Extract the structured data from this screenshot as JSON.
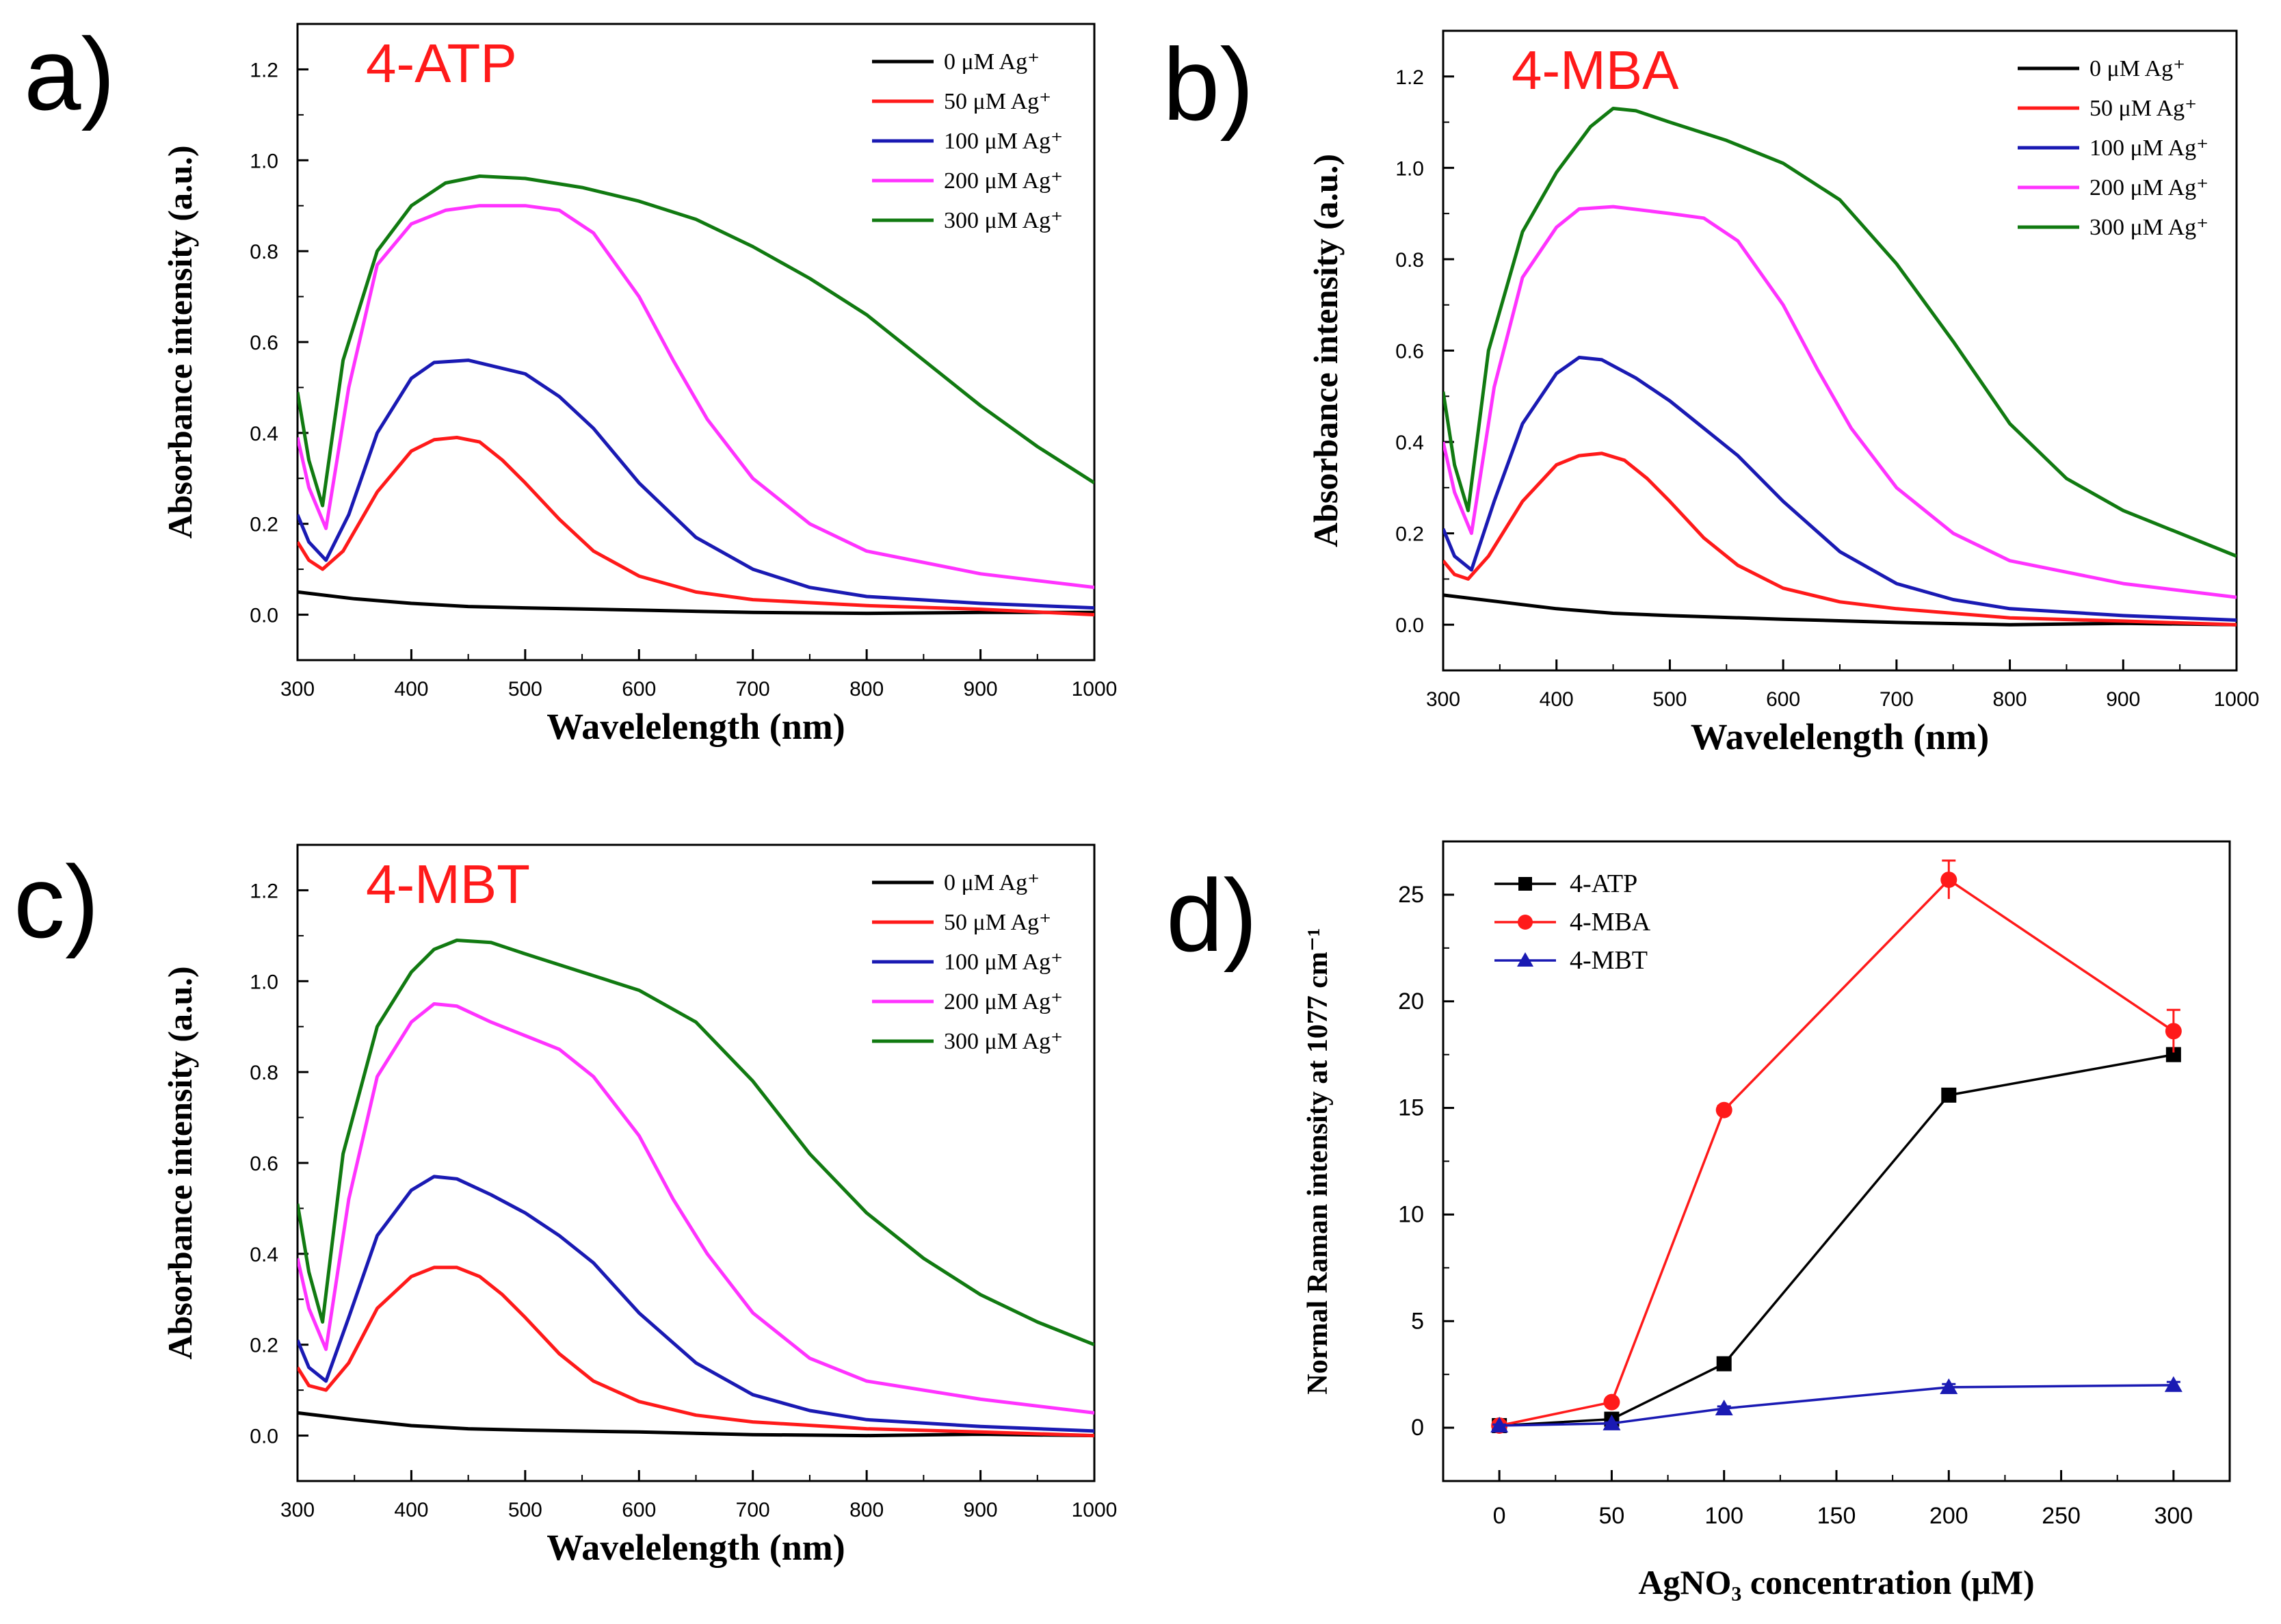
{
  "figure": {
    "panel_labels": [
      "a)",
      "b)",
      "c)",
      "d)"
    ],
    "colors": {
      "black": "#000000",
      "red": "#ff1a1a",
      "blue": "#1a1ab3",
      "magenta": "#ff33ff",
      "green": "#117a11",
      "title_red": "#ff1a1a"
    }
  },
  "chart_data": [
    {
      "panel": "a)",
      "type": "line",
      "title": "4-ATP",
      "xlabel": "Wavelelength (nm)",
      "ylabel": "Absorbance intensity (a.u.)",
      "xlim": [
        300,
        1000
      ],
      "ylim": [
        -0.1,
        1.3
      ],
      "xticks": [
        300,
        400,
        500,
        600,
        700,
        800,
        900,
        1000
      ],
      "yticks": [
        0.0,
        0.2,
        0.4,
        0.6,
        0.8,
        1.0,
        1.2
      ],
      "legend": "top-right",
      "series": [
        {
          "name": "0 μM Ag⁺",
          "color": "black",
          "x": [
            300,
            350,
            400,
            450,
            500,
            600,
            700,
            800,
            900,
            1000
          ],
          "y": [
            0.05,
            0.035,
            0.025,
            0.018,
            0.015,
            0.01,
            0.005,
            0.003,
            0.005,
            0.005
          ]
        },
        {
          "name": "50 μM Ag⁺",
          "color": "red",
          "x": [
            300,
            310,
            322,
            340,
            370,
            400,
            420,
            440,
            460,
            480,
            500,
            530,
            560,
            600,
            650,
            700,
            800,
            900,
            1000
          ],
          "y": [
            0.16,
            0.12,
            0.1,
            0.14,
            0.27,
            0.36,
            0.385,
            0.39,
            0.38,
            0.34,
            0.29,
            0.21,
            0.14,
            0.085,
            0.05,
            0.033,
            0.02,
            0.012,
            0.0
          ]
        },
        {
          "name": "100 μM Ag⁺",
          "color": "blue",
          "x": [
            300,
            310,
            325,
            345,
            370,
            400,
            420,
            450,
            500,
            530,
            560,
            600,
            650,
            700,
            750,
            800,
            900,
            1000
          ],
          "y": [
            0.22,
            0.16,
            0.12,
            0.22,
            0.4,
            0.52,
            0.555,
            0.56,
            0.53,
            0.48,
            0.41,
            0.29,
            0.17,
            0.1,
            0.06,
            0.04,
            0.025,
            0.015
          ]
        },
        {
          "name": "200 μM Ag⁺",
          "color": "magenta",
          "x": [
            300,
            310,
            325,
            345,
            370,
            400,
            430,
            460,
            500,
            530,
            560,
            600,
            630,
            660,
            700,
            750,
            800,
            900,
            1000
          ],
          "y": [
            0.39,
            0.28,
            0.19,
            0.5,
            0.77,
            0.86,
            0.89,
            0.9,
            0.9,
            0.89,
            0.84,
            0.7,
            0.56,
            0.43,
            0.3,
            0.2,
            0.14,
            0.09,
            0.06
          ]
        },
        {
          "name": "300 μM Ag⁺",
          "color": "green",
          "x": [
            300,
            310,
            322,
            340,
            370,
            400,
            430,
            460,
            500,
            550,
            600,
            650,
            700,
            750,
            800,
            850,
            900,
            950,
            1000
          ],
          "y": [
            0.49,
            0.34,
            0.24,
            0.56,
            0.8,
            0.9,
            0.95,
            0.965,
            0.96,
            0.94,
            0.91,
            0.87,
            0.81,
            0.74,
            0.66,
            0.56,
            0.46,
            0.37,
            0.29
          ]
        }
      ]
    },
    {
      "panel": "b)",
      "type": "line",
      "title": "4-MBA",
      "xlabel": "Wavelelength (nm)",
      "ylabel": "Absorbance intensity (a.u.)",
      "xlim": [
        300,
        1000
      ],
      "ylim": [
        -0.1,
        1.3
      ],
      "xticks": [
        300,
        400,
        500,
        600,
        700,
        800,
        900,
        1000
      ],
      "yticks": [
        0.0,
        0.2,
        0.4,
        0.6,
        0.8,
        1.0,
        1.2
      ],
      "legend": "top-right",
      "series": [
        {
          "name": "0 μM Ag⁺",
          "color": "black",
          "x": [
            300,
            350,
            400,
            450,
            500,
            600,
            700,
            800,
            900,
            1000
          ],
          "y": [
            0.065,
            0.05,
            0.035,
            0.025,
            0.02,
            0.012,
            0.005,
            0.0,
            0.003,
            0.0
          ]
        },
        {
          "name": "50 μM Ag⁺",
          "color": "red",
          "x": [
            300,
            310,
            322,
            340,
            370,
            400,
            420,
            440,
            460,
            480,
            500,
            530,
            560,
            600,
            650,
            700,
            800,
            900,
            1000
          ],
          "y": [
            0.14,
            0.11,
            0.1,
            0.15,
            0.27,
            0.35,
            0.37,
            0.375,
            0.36,
            0.32,
            0.27,
            0.19,
            0.13,
            0.08,
            0.05,
            0.035,
            0.015,
            0.008,
            0.0
          ]
        },
        {
          "name": "100 μM Ag⁺",
          "color": "blue",
          "x": [
            300,
            310,
            325,
            345,
            370,
            400,
            420,
            440,
            470,
            500,
            530,
            560,
            600,
            650,
            700,
            750,
            800,
            900,
            1000
          ],
          "y": [
            0.21,
            0.15,
            0.12,
            0.27,
            0.44,
            0.55,
            0.585,
            0.58,
            0.54,
            0.49,
            0.43,
            0.37,
            0.27,
            0.16,
            0.09,
            0.055,
            0.035,
            0.02,
            0.01
          ]
        },
        {
          "name": "200 μM Ag⁺",
          "color": "magenta",
          "x": [
            300,
            310,
            325,
            345,
            370,
            400,
            420,
            450,
            500,
            530,
            560,
            600,
            630,
            660,
            700,
            750,
            800,
            900,
            1000
          ],
          "y": [
            0.4,
            0.29,
            0.2,
            0.52,
            0.76,
            0.87,
            0.91,
            0.915,
            0.9,
            0.89,
            0.84,
            0.7,
            0.56,
            0.43,
            0.3,
            0.2,
            0.14,
            0.09,
            0.06
          ]
        },
        {
          "name": "300 μM Ag⁺",
          "color": "green",
          "x": [
            300,
            310,
            322,
            340,
            370,
            400,
            430,
            450,
            470,
            500,
            550,
            600,
            650,
            700,
            750,
            800,
            850,
            900,
            950,
            1000
          ],
          "y": [
            0.51,
            0.35,
            0.25,
            0.6,
            0.86,
            0.99,
            1.09,
            1.13,
            1.125,
            1.1,
            1.06,
            1.01,
            0.93,
            0.79,
            0.62,
            0.44,
            0.32,
            0.25,
            0.2,
            0.15
          ]
        }
      ]
    },
    {
      "panel": "c)",
      "type": "line",
      "title": "4-MBT",
      "xlabel": "Wavelelength (nm)",
      "ylabel": "Absorbance intensity (a.u.)",
      "xlim": [
        300,
        1000
      ],
      "ylim": [
        -0.1,
        1.3
      ],
      "xticks": [
        300,
        400,
        500,
        600,
        700,
        800,
        900,
        1000
      ],
      "yticks": [
        0.0,
        0.2,
        0.4,
        0.6,
        0.8,
        1.0,
        1.2
      ],
      "legend": "top-right",
      "series": [
        {
          "name": "0 μM Ag⁺",
          "color": "black",
          "x": [
            300,
            350,
            400,
            450,
            500,
            600,
            700,
            800,
            900,
            1000
          ],
          "y": [
            0.05,
            0.035,
            0.022,
            0.015,
            0.012,
            0.008,
            0.002,
            0.0,
            0.003,
            0.0
          ]
        },
        {
          "name": "50 μM Ag⁺",
          "color": "red",
          "x": [
            300,
            310,
            325,
            345,
            370,
            400,
            420,
            440,
            460,
            480,
            500,
            530,
            560,
            600,
            650,
            700,
            800,
            900,
            1000
          ],
          "y": [
            0.15,
            0.11,
            0.1,
            0.16,
            0.28,
            0.35,
            0.37,
            0.37,
            0.35,
            0.31,
            0.26,
            0.18,
            0.12,
            0.075,
            0.045,
            0.03,
            0.015,
            0.008,
            0.0
          ]
        },
        {
          "name": "100 μM Ag⁺",
          "color": "blue",
          "x": [
            300,
            310,
            325,
            345,
            370,
            400,
            420,
            440,
            470,
            500,
            530,
            560,
            600,
            650,
            700,
            750,
            800,
            900,
            1000
          ],
          "y": [
            0.21,
            0.15,
            0.12,
            0.26,
            0.44,
            0.54,
            0.57,
            0.565,
            0.53,
            0.49,
            0.44,
            0.38,
            0.27,
            0.16,
            0.09,
            0.055,
            0.035,
            0.02,
            0.01
          ]
        },
        {
          "name": "200 μM Ag⁺",
          "color": "magenta",
          "x": [
            300,
            310,
            325,
            345,
            370,
            400,
            420,
            440,
            470,
            500,
            530,
            560,
            600,
            630,
            660,
            700,
            750,
            800,
            900,
            1000
          ],
          "y": [
            0.39,
            0.28,
            0.19,
            0.52,
            0.79,
            0.91,
            0.95,
            0.945,
            0.91,
            0.88,
            0.85,
            0.79,
            0.66,
            0.52,
            0.4,
            0.27,
            0.17,
            0.12,
            0.08,
            0.05
          ]
        },
        {
          "name": "300 μM Ag⁺",
          "color": "green",
          "x": [
            300,
            310,
            322,
            340,
            370,
            400,
            420,
            440,
            470,
            500,
            550,
            600,
            650,
            700,
            750,
            800,
            850,
            900,
            950,
            1000
          ],
          "y": [
            0.51,
            0.36,
            0.25,
            0.62,
            0.9,
            1.02,
            1.07,
            1.09,
            1.085,
            1.06,
            1.02,
            0.98,
            0.91,
            0.78,
            0.62,
            0.49,
            0.39,
            0.31,
            0.25,
            0.2
          ]
        }
      ]
    },
    {
      "panel": "d)",
      "type": "line",
      "title": "",
      "xlabel": "AgNO₃ concentration (μM)",
      "ylabel": "Normal Raman intensity at 1077 cm⁻¹",
      "xlim": [
        -25,
        325
      ],
      "ylim": [
        -2.5,
        27.5
      ],
      "xticks": [
        0,
        50,
        100,
        150,
        200,
        250,
        300
      ],
      "yticks": [
        0,
        5,
        10,
        15,
        20,
        25
      ],
      "legend": "top-left",
      "series": [
        {
          "name": "4-ATP",
          "color": "black",
          "marker": "square",
          "x": [
            0,
            50,
            100,
            200,
            300
          ],
          "y": [
            0.1,
            0.4,
            3.0,
            15.6,
            17.5
          ],
          "err": [
            0.1,
            0.1,
            0.15,
            0.3,
            0.3
          ]
        },
        {
          "name": "4-MBA",
          "color": "red",
          "marker": "circle",
          "x": [
            0,
            50,
            100,
            200,
            300
          ],
          "y": [
            0.1,
            1.2,
            14.9,
            25.7,
            18.6
          ],
          "err": [
            0.1,
            0.15,
            0.2,
            0.9,
            1.0
          ]
        },
        {
          "name": "4-MBT",
          "color": "blue",
          "marker": "triangle",
          "x": [
            0,
            50,
            100,
            200,
            300
          ],
          "y": [
            0.1,
            0.2,
            0.9,
            1.9,
            2.0
          ],
          "err": [
            0.05,
            0.05,
            0.1,
            0.15,
            0.15
          ]
        }
      ]
    }
  ]
}
